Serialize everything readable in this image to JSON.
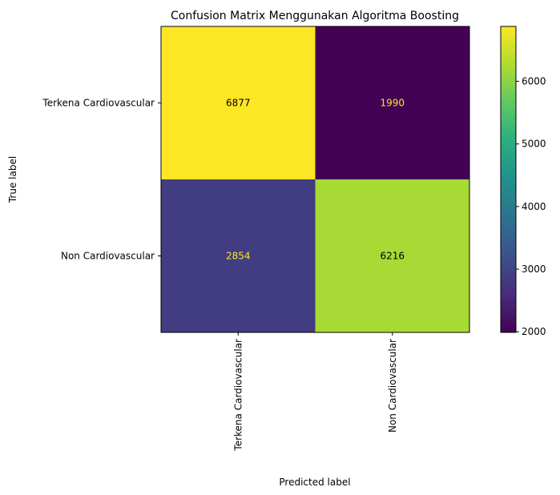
{
  "chart_data": {
    "type": "heatmap",
    "title": "Confusion Matrix Menggunakan Algoritma Boosting",
    "xlabel": "Predicted label",
    "ylabel": "True label",
    "x_categories": [
      "Terkena Cardiovascular",
      "Non Cardiovascular"
    ],
    "y_categories": [
      "Terkena Cardiovascular",
      "Non Cardiovascular"
    ],
    "values": [
      [
        6877,
        1990
      ],
      [
        2854,
        6216
      ]
    ],
    "colormap": "viridis",
    "colorbar_range": [
      1990,
      6877
    ],
    "colorbar_ticks": [
      2000,
      3000,
      4000,
      5000,
      6000
    ],
    "label_color_dark_bg": "#fde725",
    "label_color_light_bg": "#000000"
  }
}
